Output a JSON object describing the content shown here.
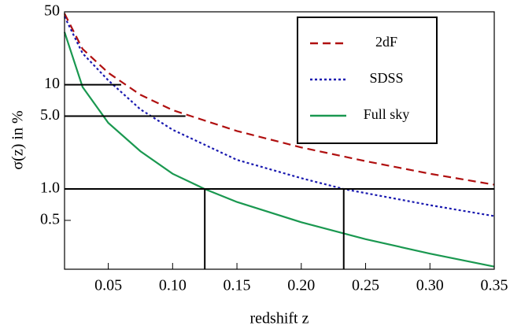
{
  "chart_data": {
    "type": "line",
    "log_y": true,
    "xlabel": "redshift z",
    "ylabel": "σ(z) in %",
    "xlim": [
      0.016,
      0.35
    ],
    "ylim": [
      0.17,
      50
    ],
    "xticks": [
      0.05,
      {
        "value": 0.1,
        "label": "0.10"
      },
      0.15,
      {
        "value": 0.2,
        "label": "0.20"
      },
      0.25,
      {
        "value": 0.3,
        "label": "0.30"
      },
      0.35
    ],
    "yticks": [
      {
        "value": 0.5,
        "label": "0.5"
      },
      {
        "value": 1,
        "label": "1.0"
      },
      {
        "value": 5,
        "label": "5.0"
      },
      10,
      50
    ],
    "legend": "upper right",
    "series": [
      {
        "name": "2dF",
        "color": "#b01010",
        "dash": "dashed",
        "x": [
          0.016,
          0.03,
          0.05,
          0.075,
          0.1,
          0.15,
          0.2,
          0.25,
          0.3,
          0.35
        ],
        "values": [
          48,
          22,
          13,
          8,
          5.7,
          3.6,
          2.5,
          1.85,
          1.4,
          1.1
        ]
      },
      {
        "name": "SDSS",
        "color": "#1a1ab0",
        "dash": "dotted",
        "x": [
          0.016,
          0.03,
          0.05,
          0.075,
          0.1,
          0.15,
          0.2,
          0.233,
          0.3,
          0.35
        ],
        "values": [
          45,
          20,
          11,
          5.8,
          3.7,
          1.9,
          1.27,
          1.0,
          0.7,
          0.55
        ]
      },
      {
        "name": "Full sky",
        "color": "#1a9850",
        "dash": "solid",
        "x": [
          0.016,
          0.03,
          0.05,
          0.075,
          0.1,
          0.125,
          0.15,
          0.2,
          0.25,
          0.3,
          0.35
        ],
        "values": [
          32,
          9.5,
          4.3,
          2.3,
          1.4,
          1.0,
          0.75,
          0.48,
          0.33,
          0.24,
          0.18
        ]
      }
    ],
    "hlines": [
      {
        "y": 10,
        "xmax": 0.06
      },
      {
        "y": 5,
        "xmax": 0.11
      },
      {
        "y": 1,
        "xmax": 0.35
      }
    ],
    "vlines": [
      {
        "x": 0.125,
        "ymax": 1
      },
      {
        "x": 0.233,
        "ymax": 1
      }
    ]
  }
}
